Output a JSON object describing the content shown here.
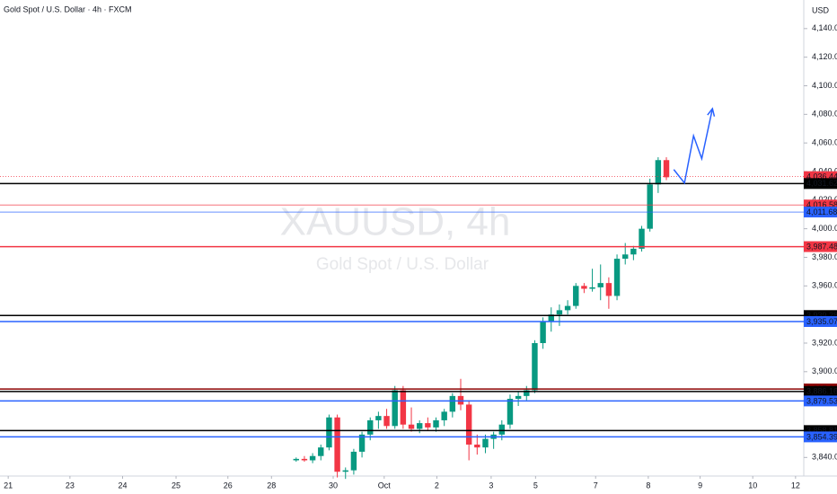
{
  "chart_data": {
    "type": "candlestick",
    "title": "Gold Spot / U.S. Dollar · 4h · FXCM",
    "currency": "USD",
    "watermark": "XAUUSD, 4h",
    "watermark_subtitle": "Gold Spot / U.S. Dollar",
    "up_color": "#089981",
    "down_color": "#f23645",
    "ylim": [
      3827,
      4160
    ],
    "yticks": [
      {
        "value": 4140,
        "label": "4,140.00"
      },
      {
        "value": 4120,
        "label": "4,120.00"
      },
      {
        "value": 4100,
        "label": "4,100.00"
      },
      {
        "value": 4080,
        "label": "4,080.00"
      },
      {
        "value": 4060,
        "label": "4,060.00"
      },
      {
        "value": 4040,
        "label": "4,040.00"
      },
      {
        "value": 4020,
        "label": "4,020.00"
      },
      {
        "value": 4000,
        "label": "4,000.00"
      },
      {
        "value": 3980,
        "label": "3,980.00"
      },
      {
        "value": 3960,
        "label": "3,960.00"
      },
      {
        "value": 3940,
        "label": "3,940.00"
      },
      {
        "value": 3920,
        "label": "3,920.00"
      },
      {
        "value": 3900,
        "label": "3,900.00"
      },
      {
        "value": 3880,
        "label": "3,880.00"
      },
      {
        "value": 3860,
        "label": "3,860.00"
      },
      {
        "value": 3840,
        "label": "3,840.00"
      }
    ],
    "xlim": [
      -3,
      94.7
    ],
    "xticks": [
      {
        "value": -2,
        "label": "21"
      },
      {
        "value": 5.5,
        "label": "23"
      },
      {
        "value": 11.9,
        "label": "24"
      },
      {
        "value": 18.4,
        "label": "25"
      },
      {
        "value": 24.7,
        "label": "26"
      },
      {
        "value": 30,
        "label": "28"
      },
      {
        "value": 37.5,
        "label": "30"
      },
      {
        "value": 43.7,
        "label": "Oct"
      },
      {
        "value": 50.1,
        "label": "2"
      },
      {
        "value": 56.7,
        "label": "3"
      },
      {
        "value": 62.1,
        "label": "5"
      },
      {
        "value": 69.4,
        "label": "7"
      },
      {
        "value": 75.8,
        "label": "8"
      },
      {
        "value": 82.1,
        "label": "9"
      },
      {
        "value": 88.5,
        "label": "10"
      },
      {
        "value": 93.7,
        "label": "12"
      }
    ],
    "candles": [
      {
        "x": 33,
        "open": 3838,
        "high": 3840,
        "low": 3837,
        "close": 3839
      },
      {
        "x": 34,
        "open": 3839,
        "high": 3841,
        "low": 3837,
        "close": 3838
      },
      {
        "x": 35,
        "open": 3838,
        "high": 3843,
        "low": 3836,
        "close": 3841
      },
      {
        "x": 36,
        "open": 3841,
        "high": 3849,
        "low": 3838,
        "close": 3847
      },
      {
        "x": 37,
        "open": 3847,
        "high": 3870,
        "low": 3845,
        "close": 3868
      },
      {
        "x": 38,
        "open": 3868,
        "high": 3870,
        "low": 3826,
        "close": 3830
      },
      {
        "x": 39,
        "open": 3830,
        "high": 3833,
        "low": 3825,
        "close": 3831
      },
      {
        "x": 40,
        "open": 3831,
        "high": 3846,
        "low": 3828,
        "close": 3844
      },
      {
        "x": 41,
        "open": 3844,
        "high": 3858,
        "low": 3840,
        "close": 3856
      },
      {
        "x": 42,
        "open": 3856,
        "high": 3868,
        "low": 3852,
        "close": 3866
      },
      {
        "x": 43,
        "open": 3866,
        "high": 3872,
        "low": 3860,
        "close": 3869
      },
      {
        "x": 44,
        "open": 3869,
        "high": 3874,
        "low": 3860,
        "close": 3862
      },
      {
        "x": 45,
        "open": 3862,
        "high": 3890,
        "low": 3860,
        "close": 3887
      },
      {
        "x": 46,
        "open": 3887,
        "high": 3890,
        "low": 3860,
        "close": 3863
      },
      {
        "x": 47,
        "open": 3863,
        "high": 3875,
        "low": 3858,
        "close": 3860
      },
      {
        "x": 48,
        "open": 3860,
        "high": 3866,
        "low": 3857,
        "close": 3864
      },
      {
        "x": 49,
        "open": 3864,
        "high": 3868,
        "low": 3859,
        "close": 3861
      },
      {
        "x": 50,
        "open": 3861,
        "high": 3868,
        "low": 3858,
        "close": 3866
      },
      {
        "x": 51,
        "open": 3866,
        "high": 3874,
        "low": 3862,
        "close": 3872
      },
      {
        "x": 52,
        "open": 3872,
        "high": 3885,
        "low": 3868,
        "close": 3883
      },
      {
        "x": 53,
        "open": 3883,
        "high": 3895,
        "low": 3873,
        "close": 3877
      },
      {
        "x": 54,
        "open": 3877,
        "high": 3880,
        "low": 3838,
        "close": 3849
      },
      {
        "x": 55,
        "open": 3849,
        "high": 3856,
        "low": 3842,
        "close": 3847
      },
      {
        "x": 56,
        "open": 3847,
        "high": 3856,
        "low": 3843,
        "close": 3853
      },
      {
        "x": 57,
        "open": 3853,
        "high": 3858,
        "low": 3846,
        "close": 3856
      },
      {
        "x": 58,
        "open": 3856,
        "high": 3866,
        "low": 3852,
        "close": 3863
      },
      {
        "x": 59,
        "open": 3863,
        "high": 3884,
        "low": 3860,
        "close": 3881
      },
      {
        "x": 60,
        "open": 3881,
        "high": 3886,
        "low": 3876,
        "close": 3883
      },
      {
        "x": 61,
        "open": 3883,
        "high": 3890,
        "low": 3880,
        "close": 3887
      },
      {
        "x": 62,
        "open": 3887,
        "high": 3922,
        "low": 3885,
        "close": 3920
      },
      {
        "x": 63,
        "open": 3920,
        "high": 3938,
        "low": 3916,
        "close": 3935
      },
      {
        "x": 64,
        "open": 3935,
        "high": 3945,
        "low": 3928,
        "close": 3940
      },
      {
        "x": 65,
        "open": 3940,
        "high": 3947,
        "low": 3932,
        "close": 3943
      },
      {
        "x": 66,
        "open": 3943,
        "high": 3950,
        "low": 3940,
        "close": 3946
      },
      {
        "x": 67,
        "open": 3946,
        "high": 3962,
        "low": 3944,
        "close": 3960
      },
      {
        "x": 68,
        "open": 3960,
        "high": 3962,
        "low": 3955,
        "close": 3958
      },
      {
        "x": 69,
        "open": 3958,
        "high": 3972,
        "low": 3956,
        "close": 3959
      },
      {
        "x": 70,
        "open": 3959,
        "high": 3975,
        "low": 3950,
        "close": 3962
      },
      {
        "x": 71,
        "open": 3962,
        "high": 3966,
        "low": 3944,
        "close": 3953
      },
      {
        "x": 72,
        "open": 3953,
        "high": 3982,
        "low": 3950,
        "close": 3979
      },
      {
        "x": 73,
        "open": 3979,
        "high": 3990,
        "low": 3975,
        "close": 3982
      },
      {
        "x": 74,
        "open": 3982,
        "high": 3988,
        "low": 3978,
        "close": 3986
      },
      {
        "x": 75,
        "open": 3986,
        "high": 4002,
        "low": 3984,
        "close": 4000
      },
      {
        "x": 76,
        "open": 4000,
        "high": 4035,
        "low": 3998,
        "close": 4031
      },
      {
        "x": 77,
        "open": 4031,
        "high": 4050,
        "low": 4025,
        "close": 4048
      },
      {
        "x": 78,
        "open": 4048,
        "high": 4050,
        "low": 4034,
        "close": 4036
      }
    ],
    "levels": [
      {
        "value": 4036.44,
        "label": "4,036.44",
        "color": "#f23645",
        "style": "dotted"
      },
      {
        "value": 4031.62,
        "label": "4,031.62",
        "color": "#000000",
        "style": "solid"
      },
      {
        "value": 4016.58,
        "label": "4,016.58",
        "color": "#f23645",
        "style": "thin"
      },
      {
        "value": 4011.68,
        "label": "4,011.68",
        "color": "#2962ff",
        "style": "thin"
      },
      {
        "value": 3987.48,
        "label": "3,987.48",
        "color": "#f23645",
        "style": "solid"
      },
      {
        "value": 3939.28,
        "label": "3,939.28",
        "color": "#000000",
        "style": "solid"
      },
      {
        "value": 3935.07,
        "label": "3,935.07",
        "color": "#2962ff",
        "style": "solid"
      },
      {
        "value": 3887.9,
        "label": "3,887.90",
        "color": "#8b0000",
        "style": "solid"
      },
      {
        "value": 3886.16,
        "label": "3,886.16",
        "color": "#000000",
        "style": "solid"
      },
      {
        "value": 3879.53,
        "label": "3,879.53",
        "color": "#2962ff",
        "style": "solid"
      },
      {
        "value": 3858.81,
        "label": "3,858.81",
        "color": "#000000",
        "style": "solid"
      },
      {
        "value": 3854.39,
        "label": "3,854.39",
        "color": "#2962ff",
        "style": "solid"
      }
    ],
    "projection": {
      "color": "#2962ff",
      "x": [
        78.9,
        80.2,
        81.3,
        82.3,
        83.6
      ],
      "values": [
        4041.4,
        4032,
        4065,
        4049,
        4084
      ]
    }
  }
}
